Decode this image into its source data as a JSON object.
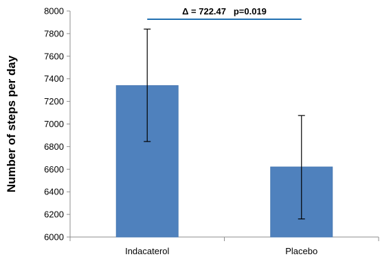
{
  "chart_data": {
    "type": "bar",
    "categories": [
      "Indacaterol",
      "Placebo"
    ],
    "values": [
      7340,
      6620
    ],
    "error_bars": [
      {
        "low": 6845,
        "high": 7840
      },
      {
        "low": 6160,
        "high": 7075
      }
    ],
    "title": "",
    "xlabel": "",
    "ylabel": "Number of steps per day",
    "ylim": [
      6000,
      8000
    ],
    "yticks": [
      6000,
      6200,
      6400,
      6600,
      6800,
      7000,
      7200,
      7400,
      7600,
      7800,
      8000
    ],
    "grid": false,
    "legend": "none",
    "annotation": {
      "text": "Δ = 722.47   p=0.019",
      "color": "#1f6fb0"
    },
    "colors": {
      "bar": "#4f81bd",
      "bar_edge": "#4a7ab3",
      "axis": "#8c8c8c",
      "error_bar": "#000000"
    }
  }
}
